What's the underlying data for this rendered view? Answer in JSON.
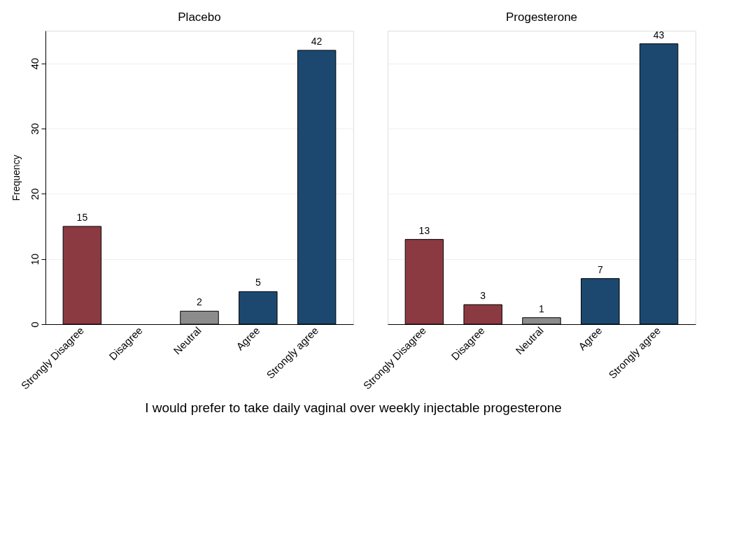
{
  "chart_data": [
    {
      "type": "bar",
      "title": "Placebo",
      "ylabel": "Frequency",
      "xlabel": "I would prefer to take daily vaginal over weekly injectable progesterone",
      "categories": [
        "Strongly Disagree",
        "Disagree",
        "Neutral",
        "Agree",
        "Strongly agree"
      ],
      "values": [
        15,
        null,
        2,
        5,
        42
      ],
      "colors": [
        "#8b3a42",
        "#8b3a42",
        "#8c8c8c",
        "#1c4870",
        "#1c4870"
      ],
      "ylim": [
        0,
        45
      ],
      "yticks": [
        0,
        10,
        20,
        30,
        40
      ],
      "grid": "y",
      "data_labels": true
    },
    {
      "type": "bar",
      "title": "Progesterone",
      "categories": [
        "Strongly Disagree",
        "Disagree",
        "Neutral",
        "Agree",
        "Strongly agree"
      ],
      "values": [
        13,
        3,
        1,
        7,
        43
      ],
      "colors": [
        "#8b3a42",
        "#8b3a42",
        "#8c8c8c",
        "#1c4870",
        "#1c4870"
      ],
      "ylim": [
        0,
        45
      ],
      "yticks": [
        0,
        10,
        20,
        30,
        40
      ],
      "grid": "y",
      "data_labels": true,
      "tick_labels": "x"
    }
  ]
}
